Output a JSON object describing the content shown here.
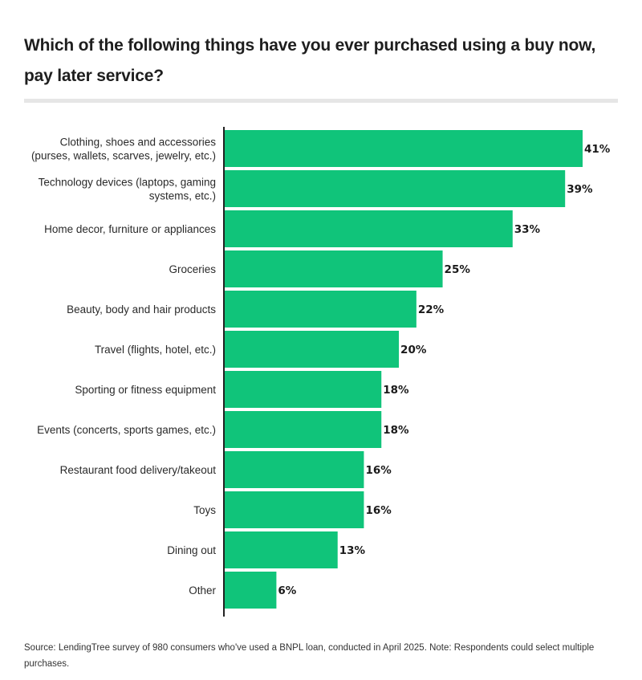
{
  "chart_data": {
    "type": "bar",
    "orientation": "horizontal",
    "title": "Which of the following things have you ever purchased using a buy now, pay later service?",
    "categories": [
      [
        "Clothing, shoes and accessories",
        "(purses, wallets, scarves, jewelry, etc.)"
      ],
      [
        "Technology devices (laptops, gaming",
        "systems, etc.)"
      ],
      [
        "Home decor, furniture or appliances"
      ],
      [
        "Groceries"
      ],
      [
        "Beauty, body and hair products"
      ],
      [
        "Travel (flights, hotel, etc.)"
      ],
      [
        "Sporting or fitness equipment"
      ],
      [
        "Events (concerts, sports games, etc.)"
      ],
      [
        "Restaurant food delivery/takeout"
      ],
      [
        "Toys"
      ],
      [
        "Dining out"
      ],
      [
        "Other"
      ]
    ],
    "values": [
      41,
      39,
      33,
      25,
      22,
      20,
      18,
      18,
      16,
      16,
      13,
      6
    ],
    "labels": [
      "41%",
      "39%",
      "33%",
      "25%",
      "22%",
      "20%",
      "18%",
      "18%",
      "16%",
      "16%",
      "13%",
      "6%"
    ],
    "xlim": [
      0,
      41
    ],
    "bar_color": "#10c47a",
    "axis_color": "#222222",
    "grid": false,
    "legend": "none",
    "source": "Source: LendingTree survey of 980 consumers who've used a BNPL loan, conducted in April 2025. Note: Respondents could select multiple purchases."
  }
}
